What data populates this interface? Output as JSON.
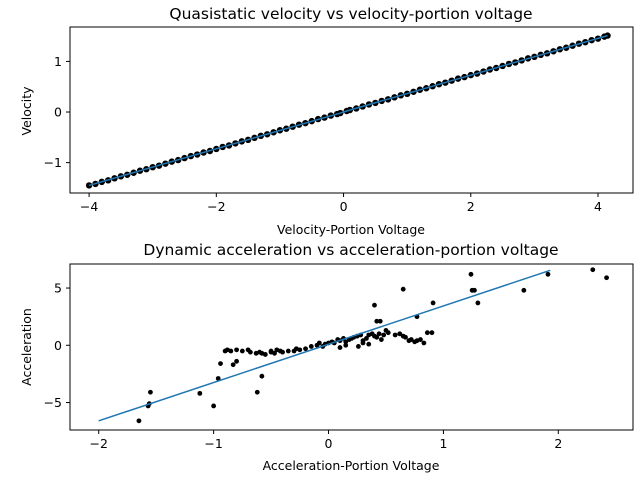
{
  "figure": {
    "background": "#ffffff",
    "line_color": "#1f77b4",
    "marker_color": "#000000"
  },
  "chart_data": [
    {
      "type": "scatter",
      "title": "Quasistatic velocity vs velocity-portion voltage",
      "xlabel": "Velocity-Portion Voltage",
      "ylabel": "Velocity",
      "xlim": [
        -4.3,
        4.55
      ],
      "ylim": [
        -1.6,
        1.68
      ],
      "xticks": [
        -4,
        -2,
        0,
        2,
        4
      ],
      "xtick_labels": [
        "−4",
        "−2",
        "0",
        "2",
        "4"
      ],
      "yticks": [
        -1,
        0,
        1
      ],
      "ytick_labels": [
        "−1",
        "0",
        "1"
      ],
      "grid": false,
      "legend": "none",
      "series": [
        {
          "kind": "points",
          "x": [
            -4.0,
            -3.9,
            -3.8,
            -3.7,
            -3.6,
            -3.5,
            -3.4,
            -3.3,
            -3.2,
            -3.1,
            -3.0,
            -2.9,
            -2.8,
            -2.7,
            -2.6,
            -2.5,
            -2.4,
            -2.3,
            -2.2,
            -2.1,
            -2.0,
            -1.9,
            -1.8,
            -1.7,
            -1.6,
            -1.5,
            -1.4,
            -1.3,
            -1.2,
            -1.1,
            -1.0,
            -0.9,
            -0.8,
            -0.7,
            -0.6,
            -0.5,
            -0.4,
            -0.3,
            -0.2,
            -0.1,
            -0.05,
            0.05,
            0.1,
            0.2,
            0.3,
            0.4,
            0.5,
            0.6,
            0.7,
            0.8,
            0.9,
            1.0,
            1.1,
            1.2,
            1.3,
            1.4,
            1.5,
            1.6,
            1.7,
            1.8,
            1.9,
            2.0,
            2.1,
            2.2,
            2.3,
            2.4,
            2.5,
            2.6,
            2.7,
            2.8,
            2.9,
            3.0,
            3.1,
            3.2,
            3.3,
            3.4,
            3.5,
            3.6,
            3.7,
            3.8,
            3.9,
            4.0,
            4.1,
            4.15
          ],
          "y": [
            -1.45,
            -1.42,
            -1.38,
            -1.35,
            -1.31,
            -1.27,
            -1.24,
            -1.2,
            -1.16,
            -1.13,
            -1.09,
            -1.06,
            -1.02,
            -0.98,
            -0.95,
            -0.91,
            -0.87,
            -0.84,
            -0.8,
            -0.77,
            -0.73,
            -0.69,
            -0.66,
            -0.62,
            -0.58,
            -0.55,
            -0.51,
            -0.47,
            -0.44,
            -0.4,
            -0.36,
            -0.33,
            -0.29,
            -0.25,
            -0.22,
            -0.18,
            -0.14,
            -0.11,
            -0.07,
            -0.04,
            -0.02,
            0.02,
            0.04,
            0.07,
            0.11,
            0.15,
            0.18,
            0.22,
            0.25,
            0.29,
            0.33,
            0.36,
            0.4,
            0.44,
            0.47,
            0.51,
            0.55,
            0.58,
            0.62,
            0.66,
            0.69,
            0.73,
            0.76,
            0.8,
            0.84,
            0.87,
            0.91,
            0.95,
            0.98,
            1.02,
            1.06,
            1.09,
            1.13,
            1.16,
            1.2,
            1.24,
            1.27,
            1.31,
            1.35,
            1.38,
            1.42,
            1.45,
            1.49,
            1.51
          ]
        },
        {
          "kind": "line",
          "x": [
            -4.0,
            -0.05,
            0.05,
            4.15
          ],
          "y": [
            -1.45,
            -0.02,
            0.02,
            1.51
          ]
        }
      ]
    },
    {
      "type": "scatter",
      "title": "Dynamic acceleration vs acceleration-portion voltage",
      "xlabel": "Acceleration-Portion Voltage",
      "ylabel": "Acceleration",
      "xlim": [
        -2.25,
        2.65
      ],
      "ylim": [
        -7.4,
        7.1
      ],
      "xticks": [
        -2,
        -1,
        0,
        1,
        2
      ],
      "xtick_labels": [
        "−2",
        "−1",
        "0",
        "1",
        "2"
      ],
      "yticks": [
        -5,
        0,
        5
      ],
      "ytick_labels": [
        "−5",
        "0",
        "5"
      ],
      "grid": false,
      "legend": "none",
      "series": [
        {
          "kind": "points",
          "x": [
            -1.65,
            -1.57,
            -1.56,
            -1.55,
            -1.12,
            -1.0,
            -0.96,
            -0.94,
            -0.9,
            -0.88,
            -0.85,
            -0.83,
            -0.8,
            -0.75,
            -0.7,
            -0.68,
            -0.63,
            -0.6,
            -0.58,
            -0.55,
            -0.5,
            -0.47,
            -0.45,
            -0.42,
            -0.4,
            -0.35,
            -0.3,
            -0.28,
            -0.25,
            -0.2,
            -0.15,
            -0.1,
            -0.08,
            -0.05,
            -0.03,
            0.0,
            0.03,
            0.05,
            0.08,
            0.1,
            0.13,
            0.15,
            0.18,
            0.2,
            0.22,
            0.25,
            0.28,
            0.3,
            0.33,
            0.35,
            0.38,
            0.4,
            0.42,
            0.44,
            0.46,
            0.48,
            0.52,
            0.58,
            0.62,
            0.65,
            0.67,
            0.7,
            0.72,
            0.75,
            0.77,
            0.8,
            0.83,
            0.86,
            0.9,
            0.5,
            0.45,
            0.42,
            0.77,
            0.91,
            1.25,
            1.27,
            1.3,
            1.24,
            1.7,
            1.91,
            2.3,
            2.42,
            0.26,
            0.3,
            0.35,
            0.4,
            0.1,
            0.15,
            -0.5,
            -0.62,
            -0.8
          ],
          "y": [
            -6.6,
            -5.3,
            -5.1,
            -4.1,
            -4.2,
            -5.3,
            -2.9,
            -1.6,
            -0.5,
            -0.4,
            -0.5,
            -1.7,
            -0.4,
            -0.5,
            -0.4,
            -0.6,
            -0.7,
            -0.6,
            -0.7,
            -0.8,
            -0.6,
            -0.7,
            -0.4,
            -0.5,
            -0.6,
            -0.5,
            -0.5,
            -0.3,
            -0.4,
            -0.3,
            -0.1,
            0.0,
            0.2,
            -0.1,
            0.1,
            0.2,
            0.3,
            0.2,
            0.5,
            0.4,
            0.6,
            0.3,
            0.5,
            0.6,
            0.7,
            0.8,
            0.9,
            0.4,
            0.6,
            0.9,
            1.0,
            0.8,
            0.7,
            1.0,
            0.5,
            0.9,
            1.1,
            0.9,
            1.0,
            0.8,
            0.7,
            0.4,
            0.5,
            0.3,
            0.4,
            0.5,
            0.2,
            1.1,
            1.1,
            1.3,
            2.1,
            2.1,
            2.5,
            3.7,
            4.8,
            4.8,
            3.7,
            6.2,
            4.8,
            6.2,
            6.6,
            5.9,
            -0.1,
            0.2,
            0.1,
            3.5,
            -0.2,
            0.0,
            -0.5,
            -4.1,
            -1.4
          ],
          "extra_x": [
            0.65,
            -0.58
          ],
          "extra_y": [
            4.9,
            -2.7
          ]
        },
        {
          "kind": "line",
          "x": [
            -2.0,
            1.93
          ],
          "y": [
            -6.6,
            6.55
          ]
        }
      ]
    }
  ]
}
